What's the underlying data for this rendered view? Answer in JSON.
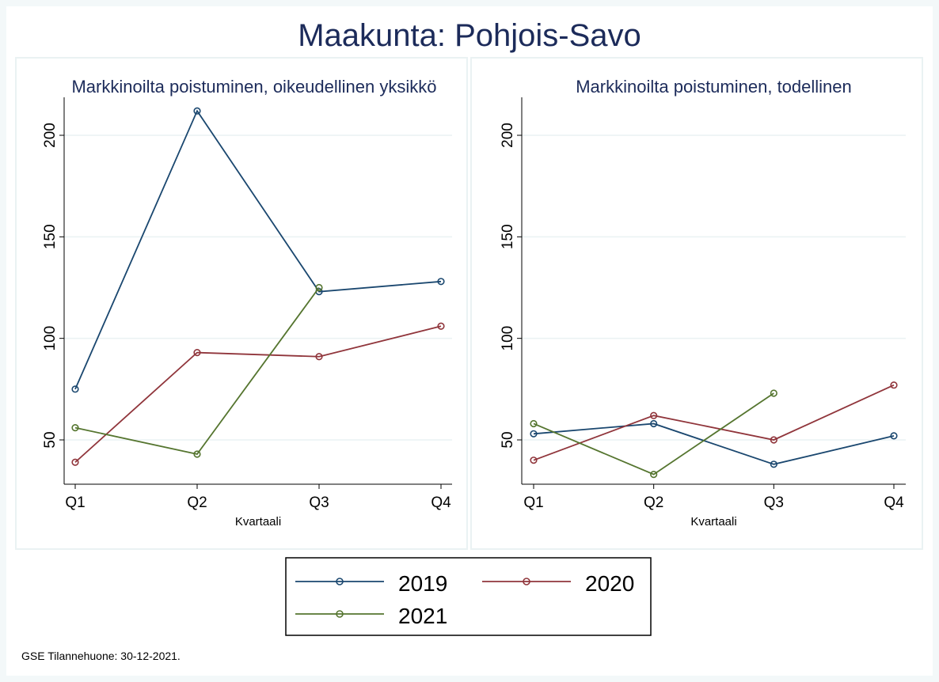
{
  "title": "Maakunta: Pohjois-Savo",
  "footer": "GSE Tilannehuone: 30-12-2021.",
  "colors": {
    "2019": "#1a476f",
    "2020": "#90353b",
    "2021": "#55752f"
  },
  "legend": [
    "2019",
    "2020",
    "2021"
  ],
  "chart_data": [
    {
      "type": "line",
      "title": "Markkinoilta poistuminen, oikeudellinen yksikkö",
      "xlabel": "Kvartaali",
      "ylabel": "",
      "categories": [
        "Q1",
        "Q2",
        "Q3",
        "Q4"
      ],
      "yticks": [
        50,
        100,
        150,
        200
      ],
      "ylim": [
        27,
        217
      ],
      "grid": true,
      "series": [
        {
          "name": "2019",
          "values": [
            75,
            212,
            123,
            128
          ]
        },
        {
          "name": "2020",
          "values": [
            39,
            93,
            91,
            106
          ]
        },
        {
          "name": "2021",
          "values": [
            56,
            43,
            125,
            null
          ]
        }
      ]
    },
    {
      "type": "line",
      "title": "Markkinoilta poistuminen, todellinen",
      "xlabel": "Kvartaali",
      "ylabel": "",
      "categories": [
        "Q1",
        "Q2",
        "Q3",
        "Q4"
      ],
      "yticks": [
        50,
        100,
        150,
        200
      ],
      "ylim": [
        27,
        217
      ],
      "grid": true,
      "series": [
        {
          "name": "2019",
          "values": [
            53,
            58,
            38,
            52
          ]
        },
        {
          "name": "2020",
          "values": [
            40,
            62,
            50,
            77
          ]
        },
        {
          "name": "2021",
          "values": [
            58,
            33,
            73,
            null
          ]
        }
      ]
    }
  ]
}
